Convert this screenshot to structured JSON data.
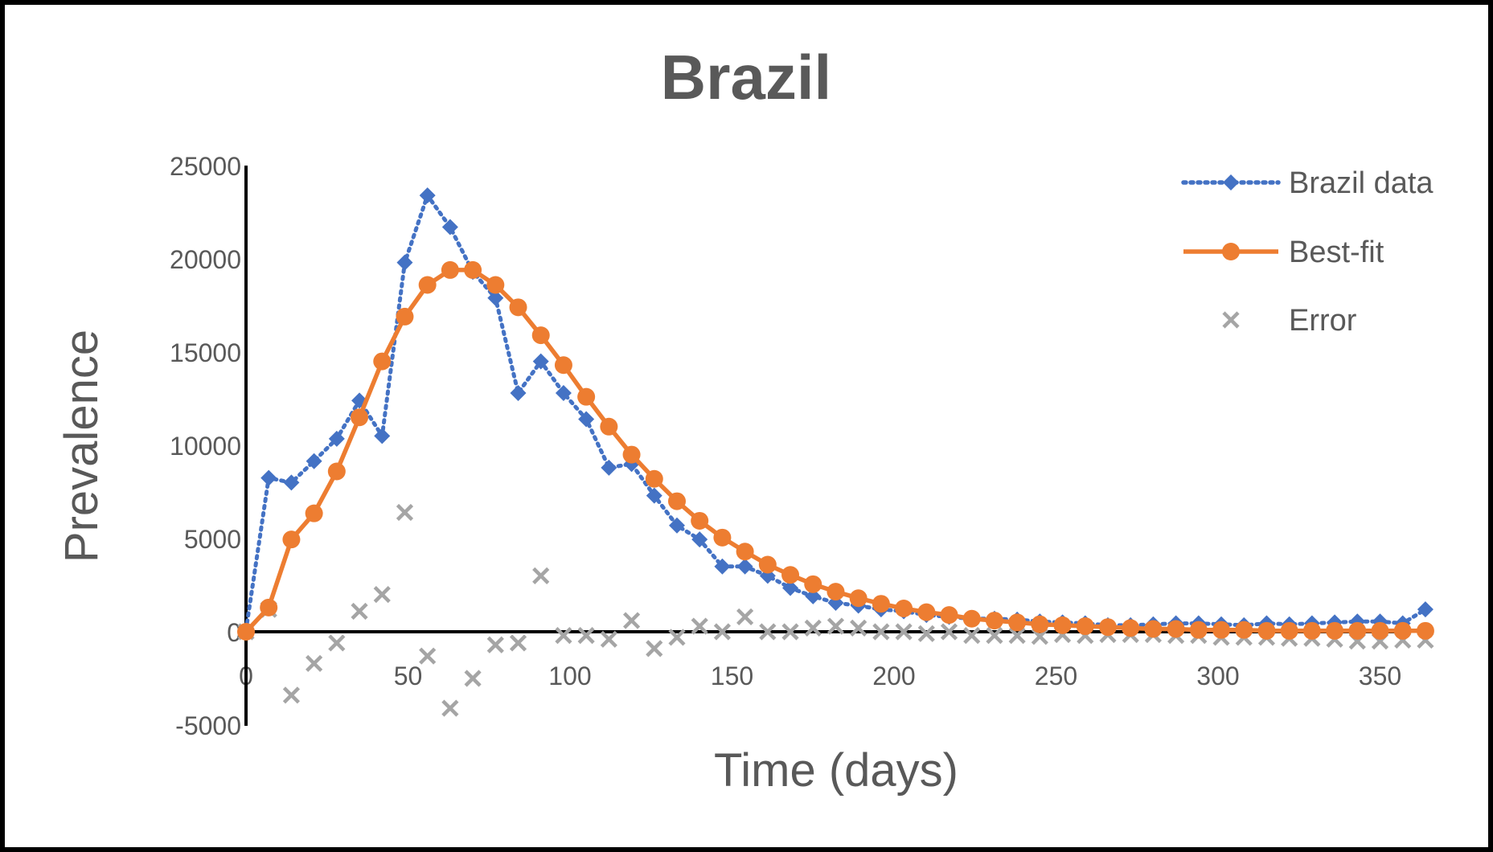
{
  "chart_data": {
    "type": "line",
    "title": "Brazil",
    "xlabel": "Time (days)",
    "ylabel": "Prevalence",
    "xlim": [
      0,
      350
    ],
    "ylim": [
      -5000,
      25000
    ],
    "x_ticks": [
      "0",
      "50",
      "100",
      "150",
      "200",
      "250",
      "300",
      "350"
    ],
    "y_ticks": [
      "-5000",
      "0",
      "5000",
      "10000",
      "15000",
      "20000",
      "25000"
    ],
    "grid": false,
    "legend_position": "top-right",
    "x": [
      0,
      7,
      14,
      21,
      28,
      35,
      42,
      49,
      56,
      63,
      70,
      77,
      84,
      91,
      98,
      105,
      112,
      119,
      126,
      133,
      140,
      147,
      154,
      161,
      168,
      175,
      182,
      189,
      196,
      203,
      210,
      217,
      224,
      231,
      238,
      245,
      252,
      259,
      266,
      273,
      280,
      287,
      294,
      301,
      308,
      315,
      322,
      329,
      336,
      343,
      350,
      357,
      364
    ],
    "series": [
      {
        "name": "Brazil data",
        "color": "#4472C4",
        "style": "dotted",
        "marker": "diamond",
        "values": [
          100,
          8250,
          8000,
          9150,
          10350,
          12400,
          10500,
          19800,
          23400,
          21700,
          19300,
          17900,
          12800,
          14500,
          12800,
          11400,
          8800,
          9000,
          7300,
          5700,
          4950,
          3500,
          3500,
          3000,
          2350,
          1900,
          1550,
          1400,
          1200,
          1100,
          900,
          800,
          700,
          700,
          650,
          550,
          500,
          450,
          350,
          350,
          400,
          450,
          450,
          400,
          350,
          450,
          400,
          450,
          500,
          550,
          550,
          450,
          1200
        ]
      },
      {
        "name": "Best-fit",
        "color": "#ED7D31",
        "style": "solid",
        "marker": "circle",
        "values": [
          0,
          1300,
          4950,
          6350,
          8600,
          11500,
          14500,
          16900,
          18600,
          19400,
          19400,
          18600,
          17400,
          15900,
          14300,
          12600,
          11000,
          9500,
          8200,
          7000,
          5950,
          5050,
          4300,
          3600,
          3050,
          2550,
          2150,
          1800,
          1500,
          1250,
          1050,
          900,
          700,
          600,
          500,
          400,
          350,
          300,
          250,
          200,
          150,
          150,
          100,
          100,
          100,
          50,
          50,
          50,
          50,
          50,
          50,
          50,
          50
        ]
      },
      {
        "name": "Error",
        "color": "#A5A5A5",
        "style": "none",
        "marker": "x",
        "values": [
          0,
          1200,
          -3400,
          -1700,
          -600,
          1100,
          2000,
          6400,
          -1300,
          -4100,
          -2500,
          -700,
          -600,
          3000,
          -200,
          -200,
          -400,
          600,
          -900,
          -300,
          300,
          0,
          800,
          0,
          0,
          200,
          300,
          200,
          0,
          0,
          -100,
          0,
          -200,
          -200,
          -200,
          -250,
          -150,
          -200,
          -150,
          -150,
          -150,
          -200,
          -200,
          -300,
          -300,
          -300,
          -350,
          -350,
          -400,
          -500,
          -500,
          -450,
          -450
        ]
      }
    ]
  }
}
